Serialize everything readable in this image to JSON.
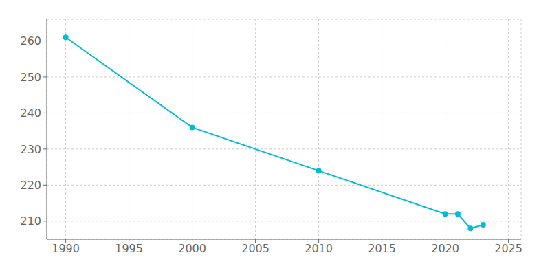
{
  "chart_data": {
    "type": "line",
    "x": [
      1990,
      2000,
      2010,
      2020,
      2021,
      2022,
      2023
    ],
    "values": [
      261,
      236,
      224,
      212,
      212,
      208,
      209
    ],
    "color": "#00bcd4",
    "marker": "circle",
    "xlim": [
      1988.5,
      2026
    ],
    "ylim": [
      205,
      266
    ],
    "xticks": [
      1990,
      1995,
      2000,
      2005,
      2010,
      2015,
      2020,
      2025
    ],
    "yticks": [
      210,
      220,
      230,
      240,
      250,
      260
    ],
    "grid": true
  }
}
